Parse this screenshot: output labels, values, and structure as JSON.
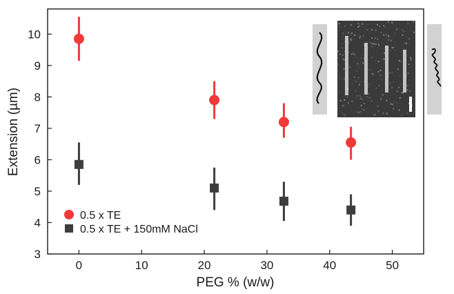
{
  "chart_data": {
    "type": "scatter",
    "xlabel": "PEG % (w/w)",
    "ylabel": "Extension (µm)",
    "xlim": [
      -5,
      55
    ],
    "ylim": [
      3,
      10.8
    ],
    "xticks": [
      0,
      10,
      20,
      30,
      40,
      50
    ],
    "yticks": [
      3,
      4,
      5,
      6,
      7,
      8,
      9,
      10
    ],
    "grid": false,
    "legend_position": "bottom-left",
    "series": [
      {
        "name": "0.5 x TE",
        "marker": "circle",
        "color": "#f03a3a",
        "points": [
          {
            "x": 0,
            "y": 9.85,
            "err_low": 9.15,
            "err_high": 10.55
          },
          {
            "x": 21.6,
            "y": 7.9,
            "err_low": 7.3,
            "err_high": 8.5
          },
          {
            "x": 32.7,
            "y": 7.2,
            "err_low": 6.7,
            "err_high": 7.8
          },
          {
            "x": 43.4,
            "y": 6.55,
            "err_low": 6.0,
            "err_high": 7.05
          }
        ]
      },
      {
        "name": "0.5 x TE + 150mM NaCl",
        "marker": "square",
        "color": "#3d3d3d",
        "points": [
          {
            "x": 0,
            "y": 5.85,
            "err_low": 5.2,
            "err_high": 6.55
          },
          {
            "x": 21.6,
            "y": 5.1,
            "err_low": 4.4,
            "err_high": 5.75
          },
          {
            "x": 32.7,
            "y": 4.68,
            "err_low": 4.05,
            "err_high": 5.3
          },
          {
            "x": 43.4,
            "y": 4.4,
            "err_low": 3.9,
            "err_high": 4.9
          }
        ]
      }
    ]
  }
}
